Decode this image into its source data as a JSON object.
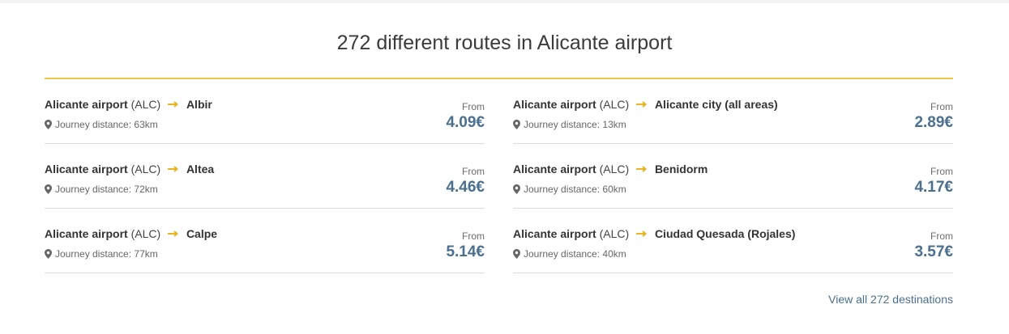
{
  "heading": "272 different routes in Alicante airport",
  "colors": {
    "accent": "#f0c645",
    "price": "#4a6f8f",
    "link": "#4a6f8f"
  },
  "routes": [
    {
      "origin": "Alicante airport",
      "code": "(ALC)",
      "destination": "Albir",
      "distance": "Journey distance: 63km",
      "from_label": "From",
      "price": "4.09€"
    },
    {
      "origin": "Alicante airport",
      "code": "(ALC)",
      "destination": "Altea",
      "distance": "Journey distance: 72km",
      "from_label": "From",
      "price": "4.46€"
    },
    {
      "origin": "Alicante airport",
      "code": "(ALC)",
      "destination": "Calpe",
      "distance": "Journey distance: 77km",
      "from_label": "From",
      "price": "5.14€"
    },
    {
      "origin": "Alicante airport",
      "code": "(ALC)",
      "destination": "Alicante city (all areas)",
      "distance": "Journey distance: 13km",
      "from_label": "From",
      "price": "2.89€"
    },
    {
      "origin": "Alicante airport",
      "code": "(ALC)",
      "destination": "Benidorm",
      "distance": "Journey distance: 60km",
      "from_label": "From",
      "price": "4.17€"
    },
    {
      "origin": "Alicante airport",
      "code": "(ALC)",
      "destination": "Ciudad Quesada (Rojales)",
      "distance": "Journey distance: 40km",
      "from_label": "From",
      "price": "3.57€"
    }
  ],
  "icons": {
    "arrow": "arrow-right-icon",
    "pin": "location-pin-icon"
  },
  "view_all_label": "View all 272 destinations"
}
